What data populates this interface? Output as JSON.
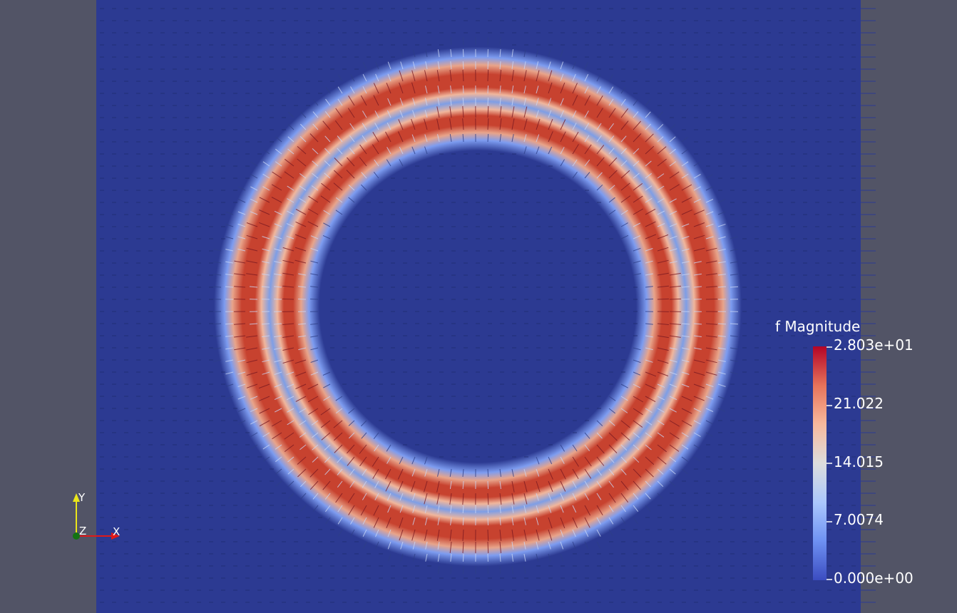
{
  "scalar_bar": {
    "title": "f Magnitude",
    "range": [
      0,
      28.03
    ],
    "ticks": [
      "2.803e+01",
      "21.022",
      "14.015",
      "7.0074",
      "0.000e+00"
    ],
    "colormap": [
      "#3b4cc0",
      "#6f92f3",
      "#aac7fd",
      "#dddddd",
      "#f7b89c",
      "#e7745b",
      "#b40426"
    ]
  },
  "orientation_axes": {
    "x_label": "X",
    "y_label": "Y",
    "z_label": "Z",
    "x_color": "#e01919",
    "y_color": "#ebe61a",
    "z_color": "#137313"
  },
  "field": {
    "background_color": "#2b3990",
    "side_panel_color": "#525466",
    "ring_color": "#c0412f",
    "mid_color": "#8aa6e6"
  }
}
